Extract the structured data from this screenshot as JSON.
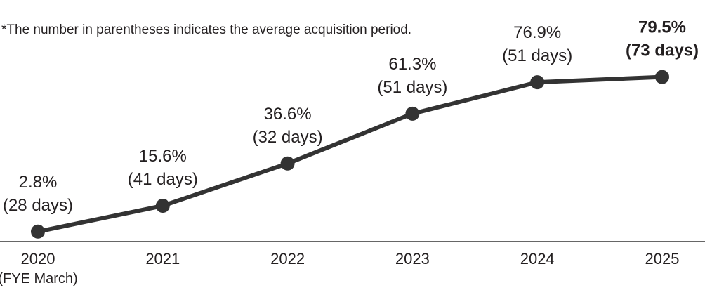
{
  "note": "*The number in parentheses indicates the average acquisition period.",
  "chart_data": {
    "type": "line",
    "title": "",
    "xlabel": "",
    "ylabel": "",
    "categories": [
      "2020",
      "2021",
      "2022",
      "2023",
      "2024",
      "2025"
    ],
    "x_sublabel": "(FYE March)",
    "series": [
      {
        "values": [
          2.8,
          15.6,
          36.6,
          61.3,
          76.9,
          79.5
        ],
        "value_labels": [
          "2.8%",
          "15.6%",
          "36.6%",
          "61.3%",
          "76.9%",
          "79.5%"
        ],
        "period_labels": [
          "(28 days)",
          "(41 days)",
          "(32 days)",
          "(51 days)",
          "(51 days)",
          "(73 days)"
        ]
      }
    ],
    "highlight_index": 5,
    "line_color": "#333333",
    "grid": false
  }
}
